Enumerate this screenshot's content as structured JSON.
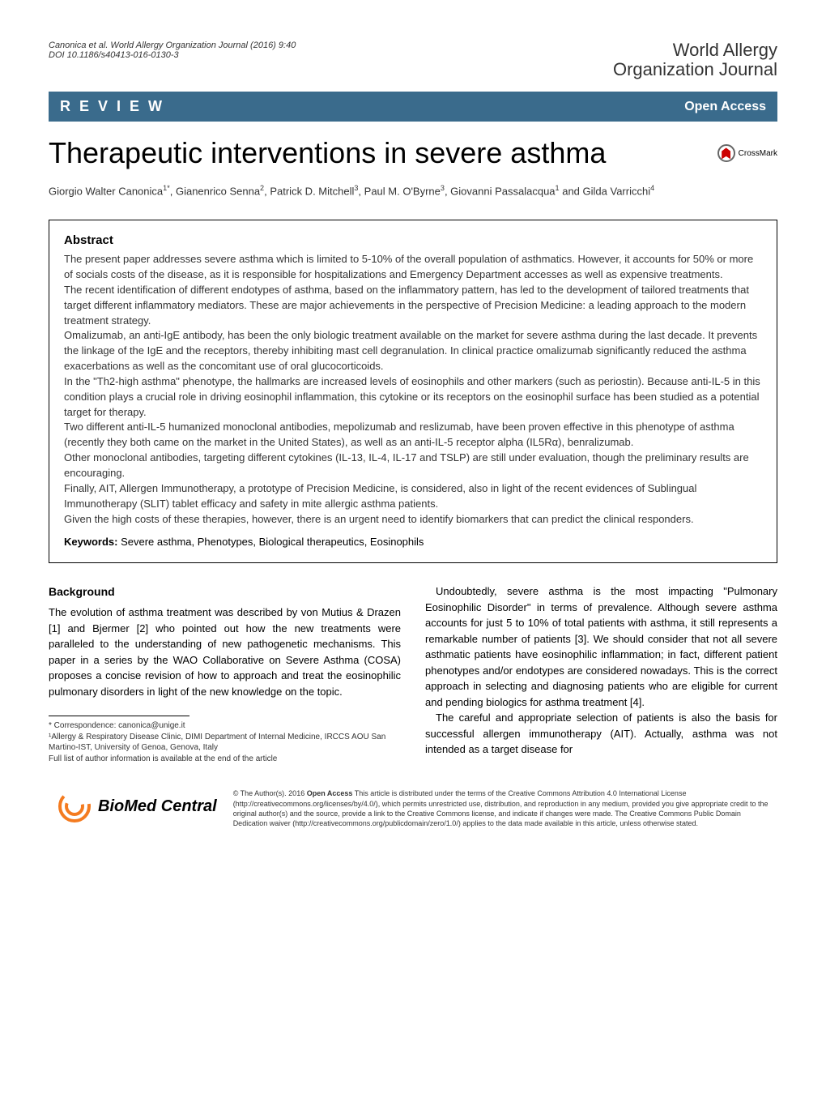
{
  "header": {
    "citation_line1": "Canonica et al. World Allergy Organization Journal  (2016) 9:40",
    "citation_line2": "DOI 10.1186/s40413-016-0130-3",
    "journal_name_line1": "World Allergy",
    "journal_name_line2": "Organization Journal"
  },
  "review_bar": {
    "label": "R E V I E W",
    "open_access": "Open Access"
  },
  "title": "Therapeutic interventions in severe asthma",
  "crossmark_label": "CrossMark",
  "authors_html": "Giorgio Walter Canonica<sup>1*</sup>, Gianenrico Senna<sup>2</sup>, Patrick D. Mitchell<sup>3</sup>, Paul M. O'Byrne<sup>3</sup>, Giovanni Passalacqua<sup>1</sup> and Gilda Varricchi<sup>4</sup>",
  "abstract": {
    "heading": "Abstract",
    "paragraphs": [
      "The present paper addresses severe asthma which is limited to 5-10% of the overall population of asthmatics. However, it accounts for 50% or more of socials costs of the disease, as it is responsible for hospitalizations and Emergency Department accesses as well as expensive treatments.",
      "The recent identification of different endotypes of asthma, based on the inflammatory pattern, has led to the development of tailored treatments that target different inflammatory mediators. These are major achievements in the perspective of Precision Medicine: a leading approach to the modern treatment strategy.",
      "Omalizumab, an anti-IgE antibody, has been the only biologic treatment available on the market for severe asthma during the last decade. It prevents the linkage of the IgE and the receptors, thereby inhibiting mast cell degranulation. In clinical practice omalizumab significantly reduced the asthma exacerbations as well as the concomitant use of oral glucocorticoids.",
      "In the \"Th2-high asthma\" phenotype, the hallmarks are increased levels of eosinophils and other markers (such as periostin). Because anti-IL-5 in this condition plays a crucial role in driving eosinophil inflammation, this cytokine or its receptors on the eosinophil surface has been studied as a potential target for therapy.",
      "Two different anti-IL-5 humanized monoclonal antibodies, mepolizumab and reslizumab, have been proven effective in this phenotype of asthma (recently they both came on the market in the United States), as well as an anti-IL-5 receptor alpha (IL5Rα), benralizumab.",
      "Other monoclonal antibodies, targeting different cytokines (IL-13, IL-4, IL-17 and TSLP) are still under evaluation, though the preliminary results are encouraging.",
      "Finally, AIT, Allergen Immunotherapy, a prototype of Precision Medicine, is considered, also in light of the recent evidences of Sublingual Immunotherapy (SLIT) tablet efficacy and safety in mite allergic asthma patients.",
      "Given the high costs of these therapies, however, there is an urgent need to identify biomarkers that can predict the clinical responders."
    ],
    "keywords_label": "Keywords:",
    "keywords_text": " Severe asthma, Phenotypes, Biological therapeutics, Eosinophils"
  },
  "body": {
    "background_heading": "Background",
    "left_column": "The evolution of asthma treatment was described by von Mutius & Drazen [1] and Bjermer [2] who pointed out how the new treatments were paralleled to the understanding of new pathogenetic mechanisms. This paper in a series by the WAO Collaborative on Severe Asthma (COSA) proposes a concise revision of how to approach and treat the eosinophilic pulmonary disorders in light of the new knowledge on the topic.",
    "right_column_p1": "Undoubtedly, severe asthma is the most impacting \"Pulmonary Eosinophilic Disorder\" in terms of prevalence. Although severe asthma accounts for just 5 to 10% of total patients with asthma, it still represents a remarkable number of patients [3]. We should consider that not all severe asthmatic patients have eosinophilic inflammation; in fact, different patient phenotypes and/or endotypes are considered nowadays. This is the correct approach in selecting and diagnosing patients who are eligible for current and pending biologics for asthma treatment [4].",
    "right_column_p2": "The careful and appropriate selection of patients is also the basis for successful allergen immunotherapy (AIT). Actually, asthma was not intended as a target disease for"
  },
  "footnote": {
    "correspondence": "* Correspondence: canonica@unige.it",
    "affiliation": "¹Allergy & Respiratory Disease Clinic, DIMI Department of Internal Medicine, IRCCS AOU San Martino-IST, University of Genoa, Genova, Italy",
    "full_list": "Full list of author information is available at the end of the article"
  },
  "footer": {
    "bmc_text": "BioMed Central",
    "license": "© The Author(s). 2016 Open Access This article is distributed under the terms of the Creative Commons Attribution 4.0 International License (http://creativecommons.org/licenses/by/4.0/), which permits unrestricted use, distribution, and reproduction in any medium, provided you give appropriate credit to the original author(s) and the source, provide a link to the Creative Commons license, and indicate if changes were made. The Creative Commons Public Domain Dedication waiver (http://creativecommons.org/publicdomain/zero/1.0/) applies to the data made available in this article, unless otherwise stated."
  },
  "colors": {
    "bar_background": "#3a6b8c",
    "text_primary": "#000000",
    "text_secondary": "#333333",
    "crossmark_red": "#cc0000",
    "bmc_orange": "#f47b20"
  }
}
